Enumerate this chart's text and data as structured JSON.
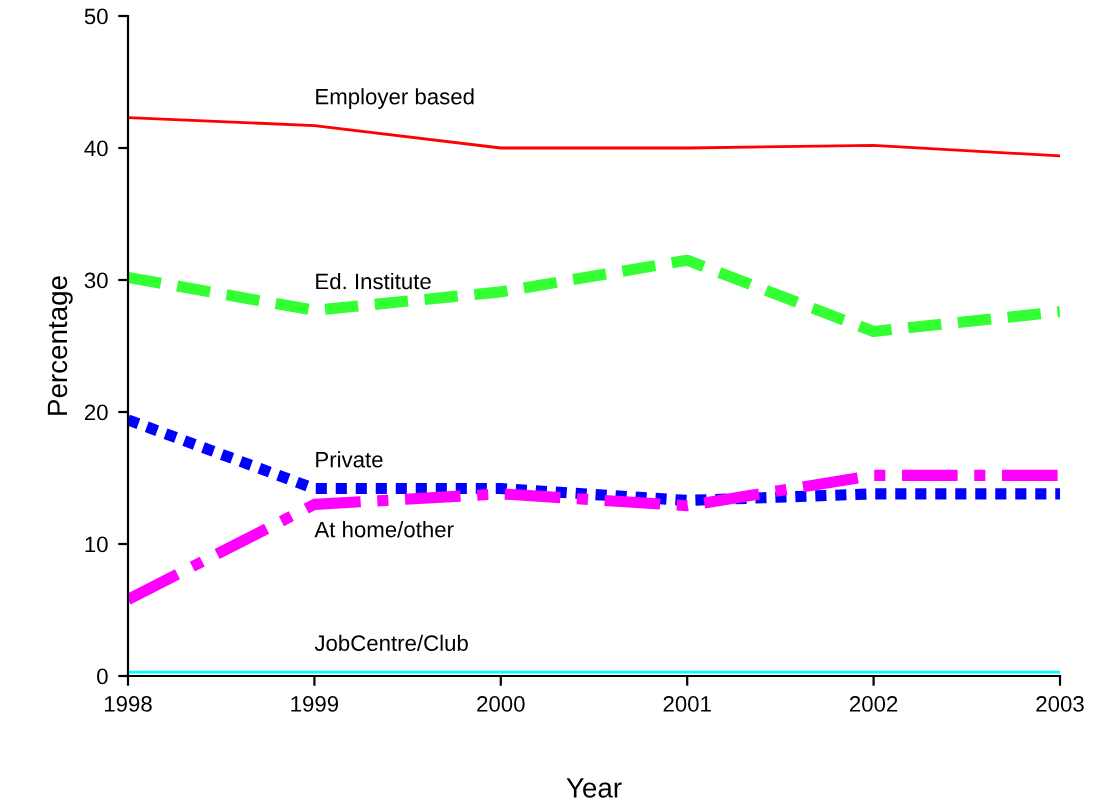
{
  "chart_data": {
    "type": "line",
    "xlabel": "Year",
    "ylabel": "Percentage",
    "x": [
      1998,
      1999,
      2000,
      2001,
      2002,
      2003
    ],
    "xlim": [
      1998,
      2003
    ],
    "xticks": [
      1998,
      1999,
      2000,
      2001,
      2002,
      2003
    ],
    "ylim": [
      0,
      50
    ],
    "yticks": [
      0,
      10,
      20,
      30,
      40,
      50
    ],
    "grid": false,
    "legend": false,
    "marker": "none",
    "series": [
      {
        "name": "Employer based",
        "color": "#ff0000",
        "line_style": "solid",
        "values": [
          42.3,
          41.7,
          40.0,
          40.0,
          40.2,
          39.4
        ]
      },
      {
        "name": "Ed. Institute",
        "color": "#33ff33",
        "line_style": "dashed",
        "values": [
          30.2,
          27.7,
          29.1,
          31.5,
          26.1,
          27.6
        ]
      },
      {
        "name": "Private",
        "color": "#0000ff",
        "line_style": "dotted",
        "values": [
          19.4,
          14.2,
          14.2,
          13.3,
          13.8,
          13.8
        ]
      },
      {
        "name": "At home/other",
        "color": "#ff00ff",
        "line_style": "dashdot",
        "values": [
          5.8,
          13.0,
          13.8,
          12.9,
          15.2,
          15.2
        ]
      },
      {
        "name": "JobCentre/Club",
        "color": "#00ffff",
        "line_style": "solid",
        "values": [
          0.3,
          0.3,
          0.3,
          0.3,
          0.3,
          0.3
        ]
      }
    ]
  }
}
